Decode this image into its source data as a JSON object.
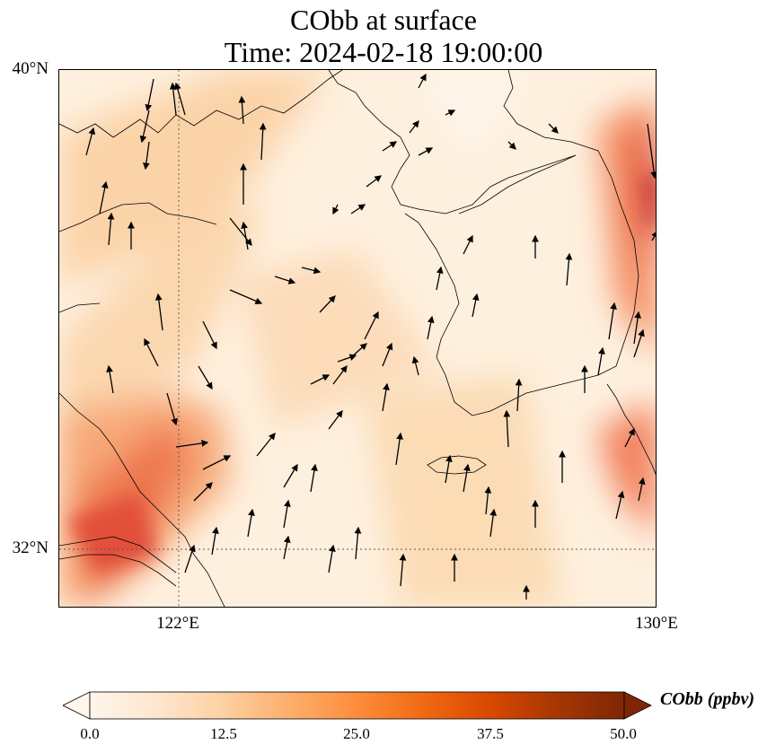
{
  "title": {
    "line1": "CObb at surface",
    "line2": "Time: 2024-02-18 19:00:00"
  },
  "map": {
    "lat_labels": [
      "40°N",
      "32°N"
    ],
    "lon_labels": [
      "122°E",
      "130°E"
    ],
    "extent": {
      "lon_min": 120,
      "lon_max": 130,
      "lat_min": 31,
      "lat_max": 40
    },
    "gridlines": {
      "lon": [
        122
      ],
      "lat": [
        32
      ],
      "style": "dotted"
    }
  },
  "colorbar": {
    "label": "CObb (ppbv)",
    "ticks": [
      "0.0",
      "12.5",
      "25.0",
      "37.5",
      "50.0"
    ],
    "min": 0,
    "max": 50,
    "colormap": [
      "#fff5eb",
      "#fee6ce",
      "#fdd0a2",
      "#fdae6b",
      "#fd8d3c",
      "#f16913",
      "#d94801",
      "#a63603",
      "#7f2704"
    ],
    "extend": "both"
  }
}
